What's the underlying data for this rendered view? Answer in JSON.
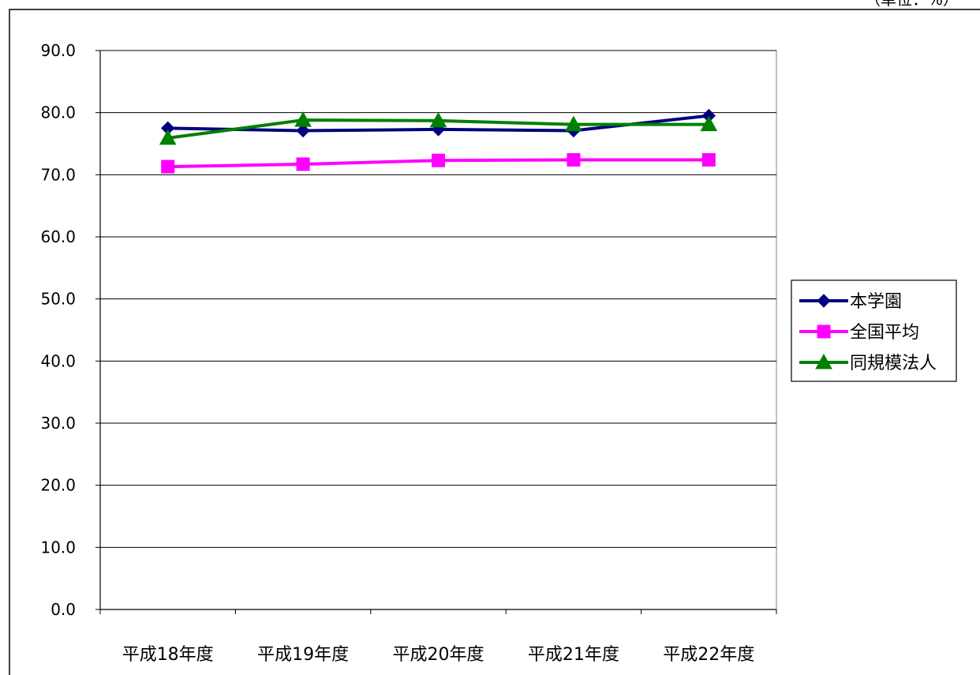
{
  "unit_note": "（単位：%）",
  "chart_data": {
    "type": "line",
    "categories": [
      "平成18年度",
      "平成19年度",
      "平成20年度",
      "平成21年度",
      "平成22年度"
    ],
    "ylim": [
      0,
      90
    ],
    "yticks": [
      0,
      10,
      20,
      30,
      40,
      50,
      60,
      70,
      80,
      90
    ],
    "tick_format_decimals": 1,
    "grid": true,
    "legend": "right",
    "series": [
      {
        "name": "本学園",
        "color": "#000080",
        "marker": "diamond",
        "values": [
          77.5,
          77.1,
          77.3,
          77.1,
          79.5
        ]
      },
      {
        "name": "全国平均",
        "color": "#ff00ff",
        "marker": "square",
        "values": [
          71.3,
          71.7,
          72.3,
          72.4,
          72.4
        ]
      },
      {
        "name": "同規模法人",
        "color": "#008000",
        "marker": "triangle",
        "values": [
          75.9,
          78.8,
          78.7,
          78.1,
          78.1
        ]
      }
    ]
  }
}
